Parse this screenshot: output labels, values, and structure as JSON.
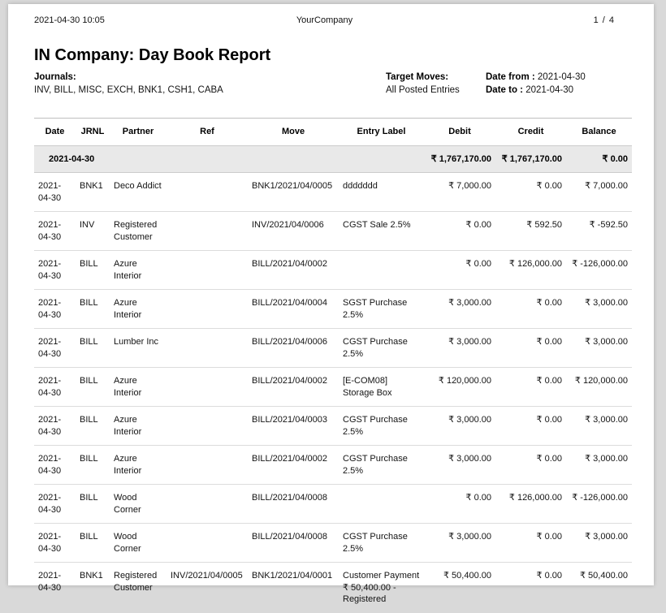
{
  "page_header": {
    "datetime": "2021-04-30 10:05",
    "company": "YourCompany",
    "page_display": "1 / 4"
  },
  "report": {
    "title": "IN Company: Day Book Report",
    "journals_label": "Journals:",
    "journals_value": "INV, BILL, MISC, EXCH, BNK1, CSH1, CABA",
    "target_moves_label": "Target Moves:",
    "target_moves_value": "All Posted Entries",
    "date_from_label": "Date from :",
    "date_from_value": "2021-04-30",
    "date_to_label": "Date to :",
    "date_to_value": "2021-04-30"
  },
  "table": {
    "columns": [
      "Date",
      "JRNL",
      "Partner",
      "Ref",
      "Move",
      "Entry Label",
      "Debit",
      "Credit",
      "Balance"
    ],
    "summary_row": {
      "date": "2021-04-30",
      "debit": "₹ 1,767,170.00",
      "credit": "₹ 1,767,170.00",
      "balance": "₹ 0.00"
    },
    "rows": [
      {
        "date": "2021-04-30",
        "jrnl": "BNK1",
        "partner": "Deco Addict",
        "ref": "",
        "move": "BNK1/2021/04/0005",
        "label": "ddddddd",
        "debit": "₹ 7,000.00",
        "credit": "₹ 0.00",
        "balance": "₹ 7,000.00"
      },
      {
        "date": "2021-04-30",
        "jrnl": "INV",
        "partner": "Registered Customer",
        "ref": "",
        "move": "INV/2021/04/0006",
        "label": "CGST Sale 2.5%",
        "debit": "₹ 0.00",
        "credit": "₹ 592.50",
        "balance": "₹ -592.50"
      },
      {
        "date": "2021-04-30",
        "jrnl": "BILL",
        "partner": "Azure Interior",
        "ref": "",
        "move": "BILL/2021/04/0002",
        "label": "",
        "debit": "₹ 0.00",
        "credit": "₹ 126,000.00",
        "balance": "₹ -126,000.00"
      },
      {
        "date": "2021-04-30",
        "jrnl": "BILL",
        "partner": "Azure Interior",
        "ref": "",
        "move": "BILL/2021/04/0004",
        "label": "SGST Purchase 2.5%",
        "debit": "₹ 3,000.00",
        "credit": "₹ 0.00",
        "balance": "₹ 3,000.00"
      },
      {
        "date": "2021-04-30",
        "jrnl": "BILL",
        "partner": "Lumber Inc",
        "ref": "",
        "move": "BILL/2021/04/0006",
        "label": "CGST Purchase 2.5%",
        "debit": "₹ 3,000.00",
        "credit": "₹ 0.00",
        "balance": "₹ 3,000.00"
      },
      {
        "date": "2021-04-30",
        "jrnl": "BILL",
        "partner": "Azure Interior",
        "ref": "",
        "move": "BILL/2021/04/0002",
        "label": "[E-COM08] Storage Box",
        "debit": "₹ 120,000.00",
        "credit": "₹ 0.00",
        "balance": "₹ 120,000.00"
      },
      {
        "date": "2021-04-30",
        "jrnl": "BILL",
        "partner": "Azure Interior",
        "ref": "",
        "move": "BILL/2021/04/0003",
        "label": "CGST Purchase 2.5%",
        "debit": "₹ 3,000.00",
        "credit": "₹ 0.00",
        "balance": "₹ 3,000.00"
      },
      {
        "date": "2021-04-30",
        "jrnl": "BILL",
        "partner": "Azure Interior",
        "ref": "",
        "move": "BILL/2021/04/0002",
        "label": "CGST Purchase 2.5%",
        "debit": "₹ 3,000.00",
        "credit": "₹ 0.00",
        "balance": "₹ 3,000.00"
      },
      {
        "date": "2021-04-30",
        "jrnl": "BILL",
        "partner": "Wood Corner",
        "ref": "",
        "move": "BILL/2021/04/0008",
        "label": "",
        "debit": "₹ 0.00",
        "credit": "₹ 126,000.00",
        "balance": "₹ -126,000.00"
      },
      {
        "date": "2021-04-30",
        "jrnl": "BILL",
        "partner": "Wood Corner",
        "ref": "",
        "move": "BILL/2021/04/0008",
        "label": "CGST Purchase 2.5%",
        "debit": "₹ 3,000.00",
        "credit": "₹ 0.00",
        "balance": "₹ 3,000.00"
      },
      {
        "date": "2021-04-30",
        "jrnl": "BNK1",
        "partner": "Registered Customer",
        "ref": "INV/2021/04/0005",
        "move": "BNK1/2021/04/0001",
        "label": "Customer Payment ₹ 50,400.00 - Registered",
        "debit": "₹ 50,400.00",
        "credit": "₹ 0.00",
        "balance": "₹ 50,400.00"
      }
    ]
  },
  "colors": {
    "canvas": "#d9d9d9",
    "page": "#ffffff",
    "summary_band": "#e9e9e9",
    "rule": "#bfbfbf",
    "row_border": "#dcdcdc",
    "text": "#141414"
  }
}
